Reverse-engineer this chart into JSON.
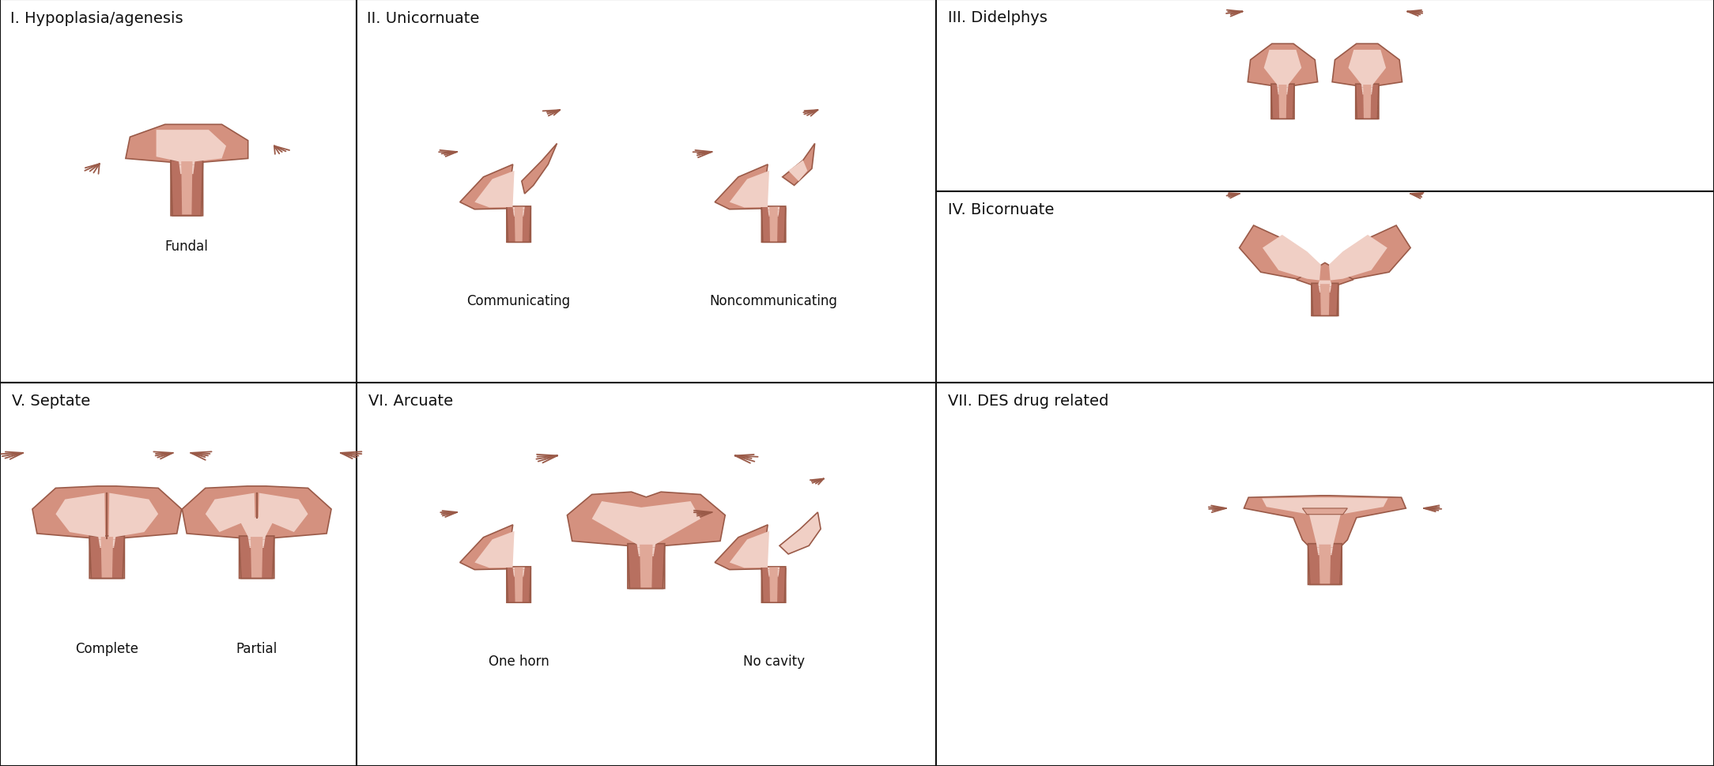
{
  "fig_w": 21.68,
  "fig_h": 9.7,
  "dpi": 100,
  "panel_labels": [
    "I. Hypoplasia/agenesis",
    "II. Unicornuate",
    "III. Didelphys",
    "IV. Bicornuate",
    "V. Septate",
    "VI. Arcuate",
    "VII. DES drug related"
  ],
  "sub_labels": [
    "Fundal",
    "Communicating",
    "Noncommunicating",
    "One horn",
    "No cavity",
    "Complete",
    "Partial"
  ],
  "body_outer": "#d4917f",
  "body_mid": "#e0a898",
  "body_inner": "#f0cfc5",
  "cervix_dark": "#b87060",
  "outline": "#9a5a48",
  "tube_outer": "#c87868",
  "tube_inner": "#e0a898",
  "white": "#ffffff",
  "black": "#111111",
  "label_fs": 14,
  "sub_fs": 12
}
